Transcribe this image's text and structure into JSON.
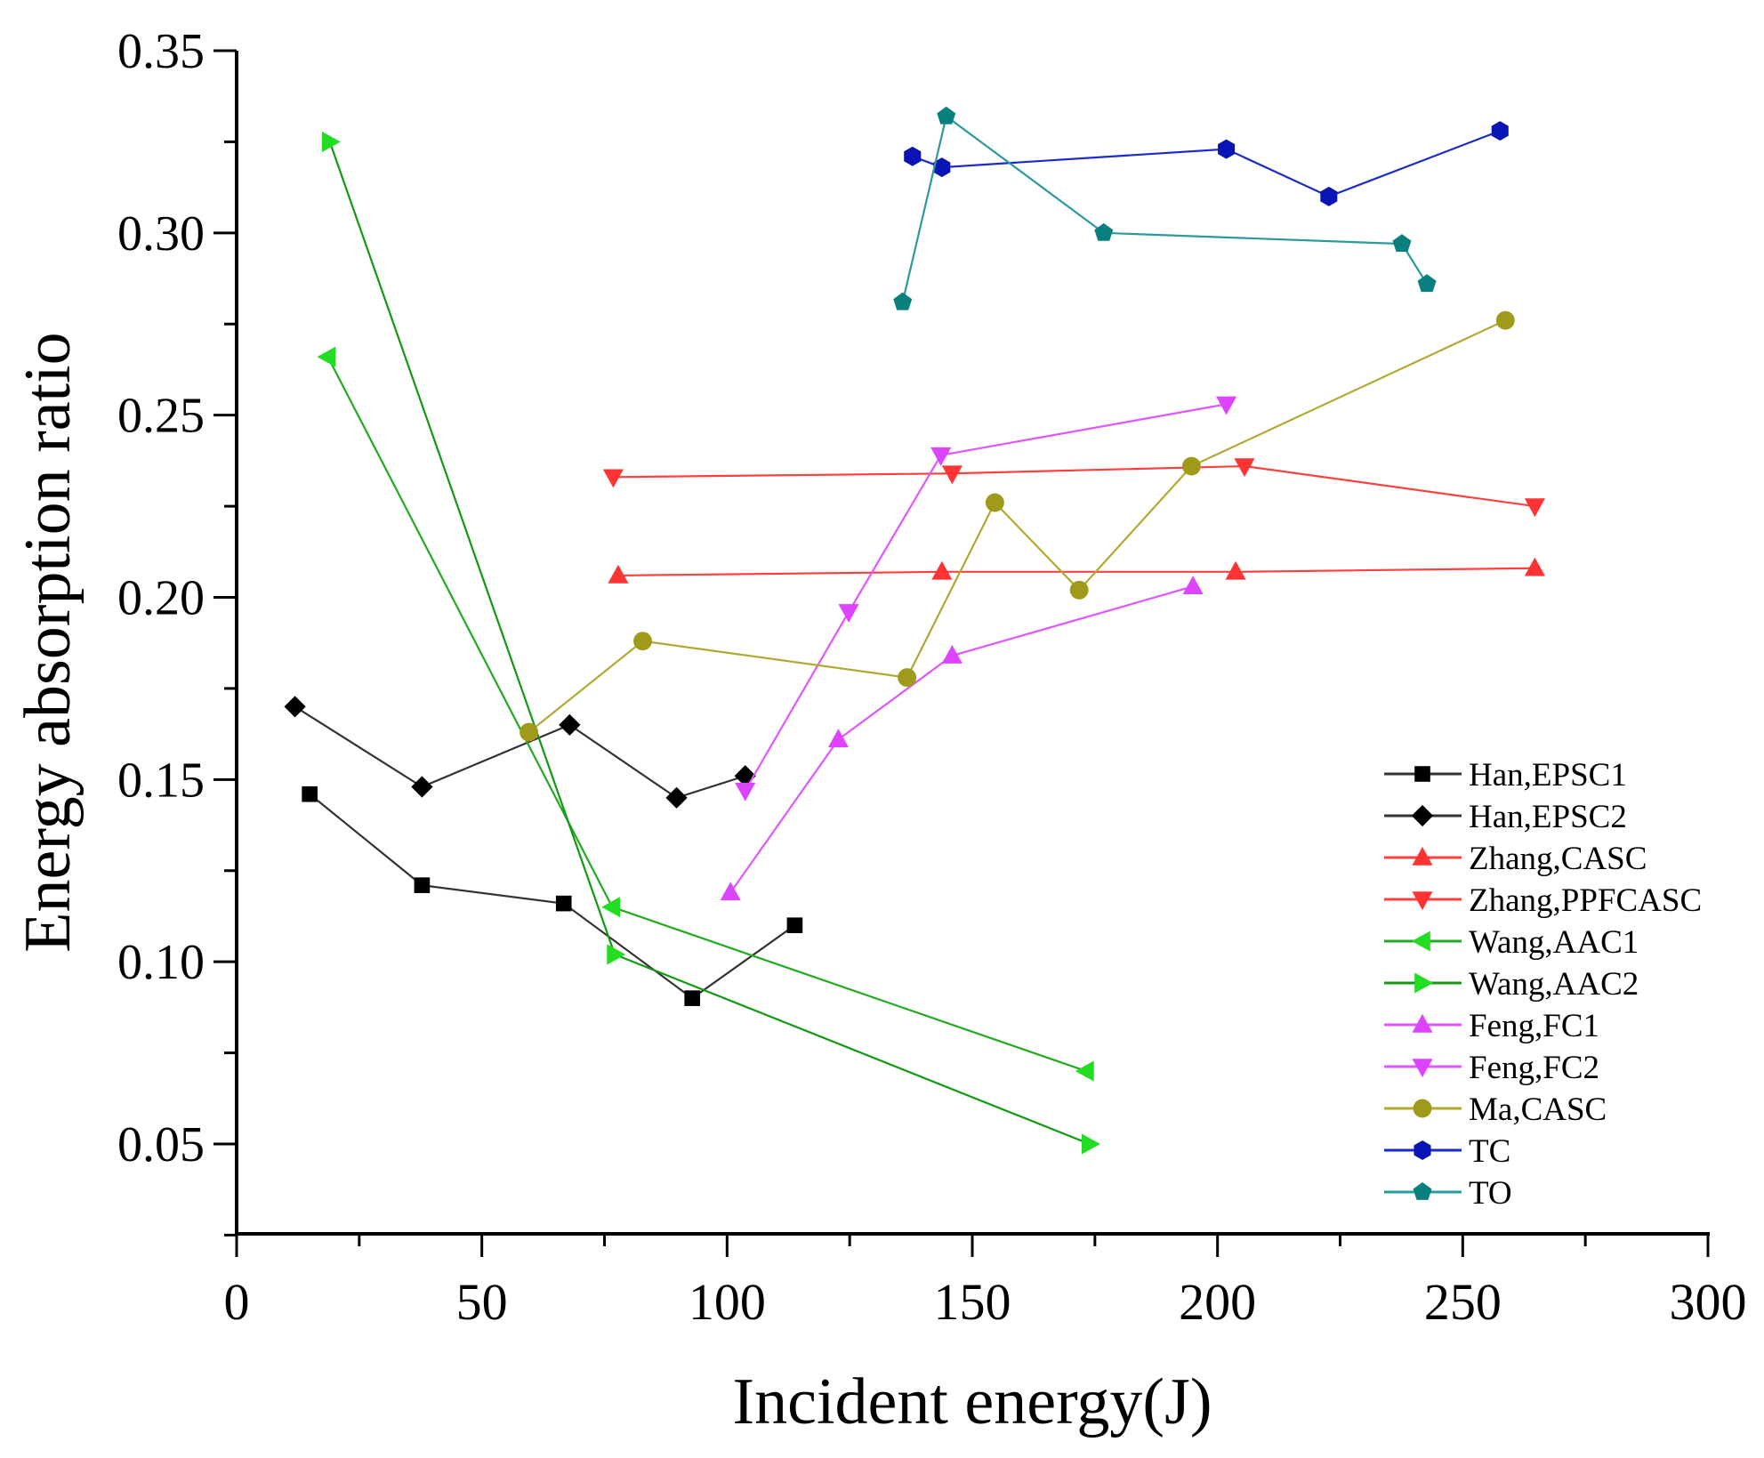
{
  "chart_data": {
    "type": "line",
    "title": "",
    "xlabel": "Incident energy(J)",
    "ylabel": "Energy absorption ratio",
    "xlim": [
      0,
      300
    ],
    "ylim": [
      0.025,
      0.35
    ],
    "xticks": [
      "0",
      "50",
      "100",
      "150",
      "200",
      "250",
      "300"
    ],
    "xtick_values": [
      0,
      50,
      100,
      150,
      200,
      250,
      300
    ],
    "yticks": [
      "0.05",
      "0.10",
      "0.15",
      "0.20",
      "0.25",
      "0.30",
      "0.35"
    ],
    "ytick_values": [
      0.05,
      0.1,
      0.15,
      0.2,
      0.25,
      0.3,
      0.35
    ],
    "grid": false,
    "legend_position": "bottom-right",
    "series": [
      {
        "name": "Han,EPSC1",
        "color": "#000000",
        "line_color": "#333333",
        "marker": "square",
        "x": [
          14.9,
          37.8,
          66.7,
          92.9,
          113.8
        ],
        "y": [
          0.146,
          0.121,
          0.116,
          0.09,
          0.11
        ]
      },
      {
        "name": "Han,EPSC2",
        "color": "#000000",
        "line_color": "#333333",
        "marker": "diamond",
        "x": [
          11.9,
          37.8,
          67.9,
          89.7,
          103.7
        ],
        "y": [
          0.17,
          0.148,
          0.165,
          0.145,
          0.151
        ]
      },
      {
        "name": "Zhang,CASC",
        "color": "#ff3333",
        "line_color": "#ff4040",
        "marker": "triangle-up",
        "x": [
          77.8,
          143.8,
          203.7,
          264.7
        ],
        "y": [
          0.206,
          0.207,
          0.207,
          0.208
        ]
      },
      {
        "name": "Zhang,PPFCASC",
        "color": "#ff3333",
        "line_color": "#ff4040",
        "marker": "triangle-down",
        "x": [
          76.8,
          145.9,
          205.5,
          264.7
        ],
        "y": [
          0.233,
          0.234,
          0.236,
          0.225
        ]
      },
      {
        "name": "Wang,AAC1",
        "color": "#22dd22",
        "line_color": "#22aa22",
        "marker": "triangle-left",
        "x": [
          18.6,
          76.6,
          173.2
        ],
        "y": [
          0.266,
          0.115,
          0.07
        ]
      },
      {
        "name": "Wang,AAC2",
        "color": "#22dd22",
        "line_color": "#119911",
        "marker": "triangle-right",
        "x": [
          19.0,
          77.1,
          173.9
        ],
        "y": [
          0.325,
          0.102,
          0.05
        ]
      },
      {
        "name": "Feng,FC1",
        "color": "#dd44ff",
        "line_color": "#e055ff",
        "marker": "triangle-up",
        "x": [
          100.7,
          122.7,
          145.9,
          195.0
        ],
        "y": [
          0.119,
          0.161,
          0.184,
          0.203
        ]
      },
      {
        "name": "Feng,FC2",
        "color": "#dd44ff",
        "line_color": "#e055ff",
        "marker": "triangle-down",
        "x": [
          103.7,
          124.8,
          143.6,
          201.8
        ],
        "y": [
          0.147,
          0.196,
          0.239,
          0.253
        ]
      },
      {
        "name": "Ma,CASC",
        "color": "#a09a1a",
        "line_color": "#b0aa30",
        "marker": "circle",
        "x": [
          59.6,
          82.8,
          136.7,
          154.6,
          171.8,
          194.7,
          258.7
        ],
        "y": [
          0.163,
          0.188,
          0.178,
          0.226,
          0.202,
          0.236,
          0.276
        ]
      },
      {
        "name": "TC",
        "color": "#0a14b4",
        "line_color": "#1a2acc",
        "marker": "hexagon",
        "x": [
          137.8,
          143.8,
          201.8,
          222.7,
          257.6
        ],
        "y": [
          0.321,
          0.318,
          0.323,
          0.31,
          0.328
        ]
      },
      {
        "name": "TO",
        "color": "#0a7f7f",
        "line_color": "#2a9a9a",
        "marker": "pentagon",
        "x": [
          135.8,
          144.7,
          176.8,
          237.6,
          242.7
        ],
        "y": [
          0.281,
          0.332,
          0.3,
          0.297,
          0.286
        ]
      }
    ]
  }
}
